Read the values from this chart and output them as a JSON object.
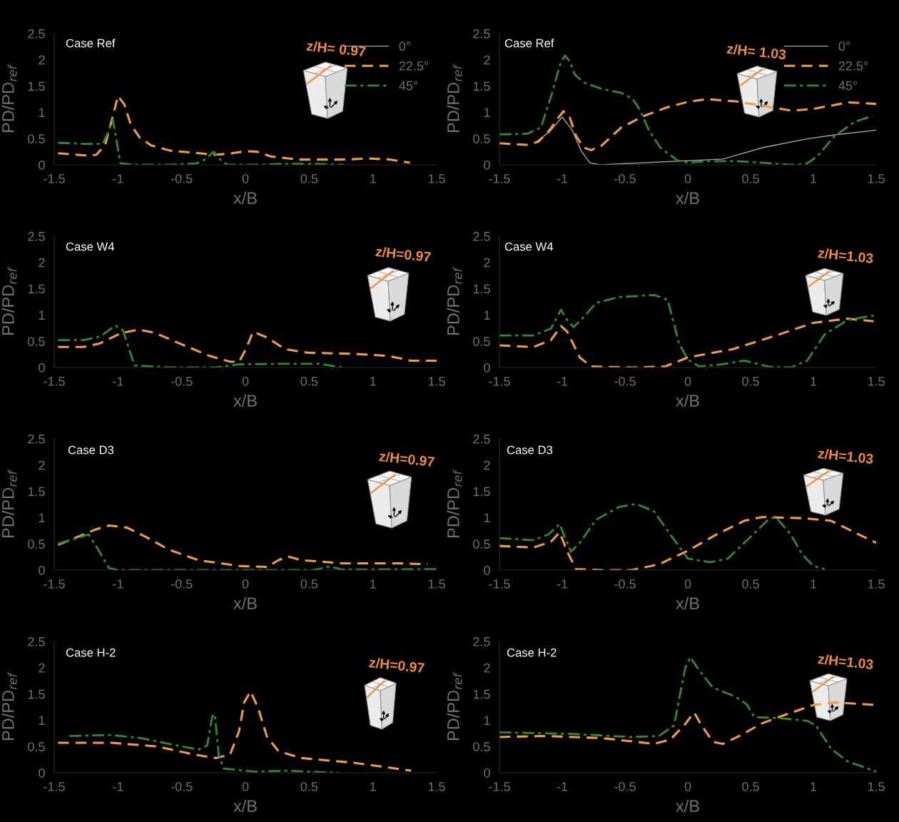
{
  "chart_data": [
    {
      "type": "line",
      "xlabel": "x/B",
      "ylabel": "PD/PD$_{ref}$",
      "xlim": [
        -1.5,
        1.5
      ],
      "ylim": [
        0,
        2.5
      ],
      "xticks": [
        -1.5,
        -1,
        -0.5,
        0,
        0.5,
        1,
        1.5
      ],
      "yticks": [
        0,
        0.5,
        1,
        1.5,
        2,
        2.5
      ],
      "legend": "top right",
      "annotations": [
        "Case Ref",
        "z/H= 0.97"
      ],
      "series": [
        {
          "name": "0°",
          "color": "#a6a6a6",
          "line_style": "solid",
          "values": [
            null
          ]
        },
        {
          "name": "22.5°",
          "color": "#f39c3c",
          "line_style": "dashed",
          "x": [
            -1.47,
            -1.26,
            -1.17,
            -1.1,
            -1.04,
            -1.0,
            -0.95,
            -0.9,
            -0.83,
            -0.74,
            -0.59,
            -0.36,
            -0.25,
            -0.14,
            0.01,
            0.09,
            0.2,
            0.42,
            0.76,
            0.98,
            1.14,
            1.29
          ],
          "values": [
            0.22,
            0.18,
            0.19,
            0.38,
            0.93,
            1.31,
            1.15,
            0.77,
            0.52,
            0.37,
            0.27,
            0.22,
            0.19,
            0.21,
            0.26,
            0.25,
            0.16,
            0.1,
            0.1,
            0.12,
            0.1,
            0.04
          ]
        },
        {
          "name": "45°",
          "color": "#2e8b2e",
          "line_style": "dashdot",
          "x": [
            -1.47,
            -1.26,
            -1.12,
            -1.08,
            -1.04,
            -1.01,
            -0.98,
            -0.88,
            -0.59,
            -0.38,
            -0.31,
            -0.25,
            -0.19,
            -0.14,
            0.09,
            0.31,
            0.53,
            0.77
          ],
          "values": [
            0.42,
            0.4,
            0.4,
            0.6,
            0.86,
            0.44,
            0.03,
            0.0,
            0.0,
            0.03,
            0.11,
            0.25,
            0.08,
            0.0,
            0.0,
            0.02,
            0.02,
            0.0
          ]
        }
      ]
    },
    {
      "type": "line",
      "xlabel": "x/B",
      "ylabel": "PD/PD$_{ref}$",
      "xlim": [
        -1.5,
        1.5
      ],
      "ylim": [
        0,
        2.5
      ],
      "xticks": [
        -1.5,
        -1,
        -0.5,
        0,
        0.5,
        1,
        1.5
      ],
      "yticks": [
        0,
        0.5,
        1,
        1.5,
        2,
        2.5
      ],
      "legend": "top right",
      "annotations": [
        "Case Ref",
        "z/H= 1.03"
      ],
      "series": [
        {
          "name": "0°",
          "color": "#a6a6a6",
          "line_style": "solid",
          "x": [
            -1.2,
            -1.1,
            -1.0,
            -0.92,
            -0.85,
            -0.78,
            -0.7,
            0.28,
            0.6,
            0.94,
            1.17,
            1.5
          ],
          "values": [
            0.45,
            0.63,
            0.91,
            0.66,
            0.27,
            0.04,
            0.0,
            0.11,
            0.33,
            0.49,
            0.57,
            0.66
          ]
        },
        {
          "name": "22.5°",
          "color": "#f39c3c",
          "line_style": "dashed",
          "x": [
            -1.5,
            -1.28,
            -1.19,
            -1.1,
            -1.03,
            -0.99,
            -0.94,
            -0.89,
            -0.83,
            -0.77,
            -0.69,
            -0.53,
            -0.35,
            -0.17,
            0,
            0.15,
            0.38,
            0.6,
            0.83,
            1.01,
            1.28,
            1.5
          ],
          "values": [
            0.41,
            0.38,
            0.44,
            0.66,
            0.9,
            1.02,
            0.9,
            0.55,
            0.33,
            0.28,
            0.36,
            0.71,
            0.93,
            1.09,
            1.2,
            1.25,
            1.21,
            1.12,
            1.03,
            1.07,
            1.19,
            1.16
          ]
        },
        {
          "name": "45°",
          "color": "#2e8b2e",
          "line_style": "dashdot",
          "x": [
            -1.5,
            -1.28,
            -1.17,
            -1.08,
            -1.02,
            -0.98,
            -0.94,
            -0.9,
            -0.83,
            -0.69,
            -0.53,
            -0.44,
            -0.38,
            -0.31,
            -0.22,
            -0.08,
            0,
            0.15,
            0.38,
            0.6,
            0.81,
            0.94,
            1.03,
            1.17,
            1.33,
            1.47
          ],
          "values": [
            0.58,
            0.59,
            0.71,
            1.37,
            1.89,
            2.08,
            1.97,
            1.72,
            1.57,
            1.45,
            1.37,
            1.26,
            1.04,
            0.66,
            0.33,
            0.08,
            0.04,
            0.07,
            0.07,
            0.04,
            0.0,
            0.01,
            0.16,
            0.55,
            0.82,
            0.93
          ]
        }
      ]
    },
    {
      "type": "line",
      "xlabel": "x/B",
      "ylabel": "PD/PD$_{ref}$",
      "xlim": [
        -1.5,
        1.5
      ],
      "ylim": [
        0,
        2.5
      ],
      "xticks": [
        -1.5,
        -1,
        -0.5,
        0,
        0.5,
        1,
        1.5
      ],
      "yticks": [
        0,
        0.5,
        1,
        1.5,
        2,
        2.5
      ],
      "annotations": [
        "Case W4",
        "z/H=0.97"
      ],
      "series": [
        {
          "color": "#f39c3c",
          "line_style": "dashed",
          "x": [
            -1.47,
            -1.27,
            -1.14,
            -0.98,
            -0.84,
            -0.71,
            -0.5,
            -0.28,
            -0.12,
            -0.05,
            0,
            0.06,
            0.17,
            0.31,
            0.49,
            0.85,
            1.12,
            1.3,
            1.5
          ],
          "values": [
            0.39,
            0.39,
            0.46,
            0.65,
            0.72,
            0.66,
            0.44,
            0.22,
            0.11,
            0.11,
            0.33,
            0.68,
            0.57,
            0.35,
            0.28,
            0.26,
            0.22,
            0.13,
            0.13
          ]
        },
        {
          "color": "#2e8b2e",
          "line_style": "dashdot",
          "x": [
            -1.47,
            -1.27,
            -1.14,
            -1.02,
            -0.96,
            -0.87,
            -0.6,
            -0.23,
            -0.05,
            0.31,
            0.58,
            0.76
          ],
          "values": [
            0.52,
            0.52,
            0.59,
            0.8,
            0.7,
            0.04,
            0.0,
            0.0,
            0.06,
            0.07,
            0.07,
            0.0
          ]
        }
      ]
    },
    {
      "type": "line",
      "xlabel": "x/B",
      "ylabel": "PD/PD$_{ref}$",
      "xlim": [
        -1.5,
        1.5
      ],
      "ylim": [
        0,
        2.5
      ],
      "xticks": [
        -1.5,
        -1,
        -0.5,
        0,
        0.5,
        1,
        1.5
      ],
      "yticks": [
        0,
        0.5,
        1,
        1.5,
        2,
        2.5
      ],
      "annotations": [
        "Case W4",
        "z/H=1.03"
      ],
      "series": [
        {
          "color": "#f39c3c",
          "line_style": "dashed",
          "x": [
            -1.5,
            -1.23,
            -1.09,
            -1.01,
            -0.96,
            -0.86,
            -0.77,
            -0.45,
            -0.18,
            0,
            0.36,
            0.73,
            1.0,
            1.27,
            1.48
          ],
          "values": [
            0.42,
            0.39,
            0.52,
            0.79,
            0.68,
            0.19,
            0.02,
            0.0,
            0.02,
            0.19,
            0.35,
            0.63,
            0.85,
            0.93,
            0.88
          ]
        },
        {
          "color": "#2e8b2e",
          "line_style": "dashdot",
          "x": [
            -1.5,
            -1.23,
            -1.09,
            -1.01,
            -0.96,
            -0.91,
            -0.84,
            -0.73,
            -0.55,
            -0.27,
            -0.16,
            -0.07,
            0,
            0.09,
            0.27,
            0.45,
            0.64,
            0.82,
            0.95,
            1.09,
            1.27,
            1.48
          ],
          "values": [
            0.61,
            0.61,
            0.74,
            1.1,
            0.9,
            0.77,
            0.93,
            1.23,
            1.34,
            1.38,
            1.29,
            0.46,
            0.15,
            0.02,
            0.06,
            0.13,
            0.02,
            0.0,
            0.13,
            0.63,
            0.9,
            0.99
          ]
        }
      ]
    },
    {
      "type": "line",
      "xlabel": "x/B",
      "ylabel": "PD/PD$_{ref}$",
      "xlim": [
        -1.5,
        1.5
      ],
      "ylim": [
        0,
        2.5
      ],
      "xticks": [
        -1.5,
        -1,
        -0.5,
        0,
        0.5,
        1,
        1.5
      ],
      "yticks": [
        0,
        0.5,
        1,
        1.5,
        2,
        2.5
      ],
      "annotations": [
        "Case D3",
        "z/H=0.97"
      ],
      "series": [
        {
          "color": "#f39c3c",
          "line_style": "dashed",
          "x": [
            -1.47,
            -1.32,
            -1.18,
            -1.07,
            -0.93,
            -0.78,
            -0.6,
            -0.37,
            -0.05,
            0.17,
            0.26,
            0.33,
            0.44,
            0.76,
            1.21,
            1.43
          ],
          "values": [
            0.48,
            0.63,
            0.77,
            0.85,
            0.81,
            0.63,
            0.39,
            0.19,
            0.08,
            0.06,
            0.19,
            0.26,
            0.19,
            0.13,
            0.13,
            0.11
          ]
        },
        {
          "color": "#2e8b2e",
          "line_style": "dashdot",
          "x": [
            -1.47,
            -1.32,
            -1.23,
            -1.16,
            -1.07,
            -1.0,
            -0.37,
            0.53,
            0.66,
            0.76,
            1.5
          ],
          "values": [
            0.5,
            0.61,
            0.68,
            0.41,
            0.04,
            0.0,
            0.0,
            0.0,
            0.07,
            0.01,
            0.02
          ]
        }
      ]
    },
    {
      "type": "line",
      "xlabel": "x/B",
      "ylabel": "PD/PD$_{ref}$",
      "xlim": [
        -1.5,
        1.5
      ],
      "ylim": [
        0,
        2.5
      ],
      "xticks": [
        -1.5,
        -1,
        -0.5,
        0,
        0.5,
        1,
        1.5
      ],
      "yticks": [
        0,
        0.5,
        1,
        1.5,
        2,
        2.5
      ],
      "annotations": [
        "Case D3",
        "z/H=1.03"
      ],
      "series": [
        {
          "color": "#f39c3c",
          "line_style": "dashed",
          "x": [
            -1.5,
            -1.23,
            -1.09,
            -1.02,
            -0.96,
            -0.89,
            -0.68,
            -0.45,
            -0.23,
            0,
            0.23,
            0.45,
            0.59,
            0.91,
            1.14,
            1.36,
            1.5
          ],
          "values": [
            0.46,
            0.43,
            0.54,
            0.72,
            0.35,
            0.02,
            0.0,
            0.0,
            0.11,
            0.37,
            0.68,
            0.94,
            1.01,
            0.99,
            0.94,
            0.68,
            0.52
          ]
        },
        {
          "color": "#2e8b2e",
          "line_style": "dashdot",
          "x": [
            -1.5,
            -1.23,
            -1.11,
            -1.02,
            -0.98,
            -0.93,
            -0.86,
            -0.73,
            -0.55,
            -0.41,
            -0.27,
            -0.14,
            0,
            0.18,
            0.32,
            0.45,
            0.64,
            0.7,
            0.82,
            0.91,
            1.0,
            1.09
          ],
          "values": [
            0.61,
            0.57,
            0.68,
            0.88,
            0.63,
            0.35,
            0.52,
            0.96,
            1.2,
            1.26,
            1.12,
            0.68,
            0.22,
            0.15,
            0.22,
            0.52,
            0.96,
            1.01,
            0.68,
            0.3,
            0.08,
            0.02
          ]
        }
      ]
    },
    {
      "type": "line",
      "xlabel": "x/B",
      "ylabel": "PD/PD$_{ref}$",
      "xlim": [
        -1.5,
        1.5
      ],
      "ylim": [
        0,
        2.5
      ],
      "xticks": [
        -1.5,
        -1,
        -0.5,
        0,
        0.5,
        1,
        1.5
      ],
      "yticks": [
        0,
        0.5,
        1,
        1.5,
        2,
        2.5
      ],
      "annotations": [
        "Case H-2",
        "z/H=0.97"
      ],
      "series": [
        {
          "color": "#f39c3c",
          "line_style": "dashed",
          "x": [
            -1.47,
            -1.05,
            -0.69,
            -0.41,
            -0.23,
            -0.12,
            -0.05,
            -0.01,
            0.04,
            0.1,
            0.17,
            0.26,
            0.44,
            0.85,
            1.3
          ],
          "values": [
            0.57,
            0.57,
            0.5,
            0.35,
            0.28,
            0.35,
            0.79,
            1.34,
            1.55,
            1.23,
            0.68,
            0.41,
            0.28,
            0.19,
            0.04
          ]
        },
        {
          "color": "#2e8b2e",
          "line_style": "dashdot",
          "x": [
            -1.38,
            -1.05,
            -0.82,
            -0.6,
            -0.37,
            -0.3,
            -0.26,
            -0.24,
            -0.21,
            -0.17,
            0.08,
            0.31,
            0.73
          ],
          "values": [
            0.7,
            0.72,
            0.66,
            0.55,
            0.44,
            0.52,
            1.07,
            1.12,
            0.35,
            0.08,
            0.02,
            0.04,
            0.0
          ]
        }
      ]
    },
    {
      "type": "line",
      "xlabel": "x/B",
      "ylabel": "PD/PD$_{ref}$",
      "xlim": [
        -1.5,
        1.5
      ],
      "ylim": [
        0,
        2.5
      ],
      "xticks": [
        -1.5,
        -1,
        -0.5,
        0,
        0.5,
        1,
        1.5
      ],
      "yticks": [
        0,
        0.5,
        1,
        1.5,
        2,
        2.5
      ],
      "annotations": [
        "Case H-2",
        "z/H=1.03"
      ],
      "series": [
        {
          "color": "#f39c3c",
          "line_style": "dashed",
          "x": [
            -1.5,
            -1.14,
            -0.68,
            -0.27,
            -0.14,
            -0.02,
            0.05,
            0.11,
            0.2,
            0.28,
            0.41,
            0.59,
            0.77,
            1.0,
            1.18,
            1.5
          ],
          "values": [
            0.68,
            0.7,
            0.66,
            0.55,
            0.63,
            0.93,
            1.15,
            0.9,
            0.59,
            0.55,
            0.7,
            0.94,
            1.1,
            1.29,
            1.34,
            1.29
          ]
        },
        {
          "color": "#2e8b2e",
          "line_style": "dashdot",
          "x": [
            -1.5,
            -0.91,
            -0.45,
            -0.23,
            -0.11,
            -0.02,
            0.02,
            0.09,
            0.2,
            0.38,
            0.47,
            0.53,
            0.73,
            0.95,
            1.02,
            1.14,
            1.27,
            1.5
          ],
          "values": [
            0.77,
            0.74,
            0.68,
            0.7,
            0.9,
            2.0,
            2.2,
            1.95,
            1.62,
            1.45,
            1.3,
            1.06,
            1.04,
            0.99,
            0.9,
            0.46,
            0.22,
            0.02
          ]
        }
      ]
    }
  ]
}
